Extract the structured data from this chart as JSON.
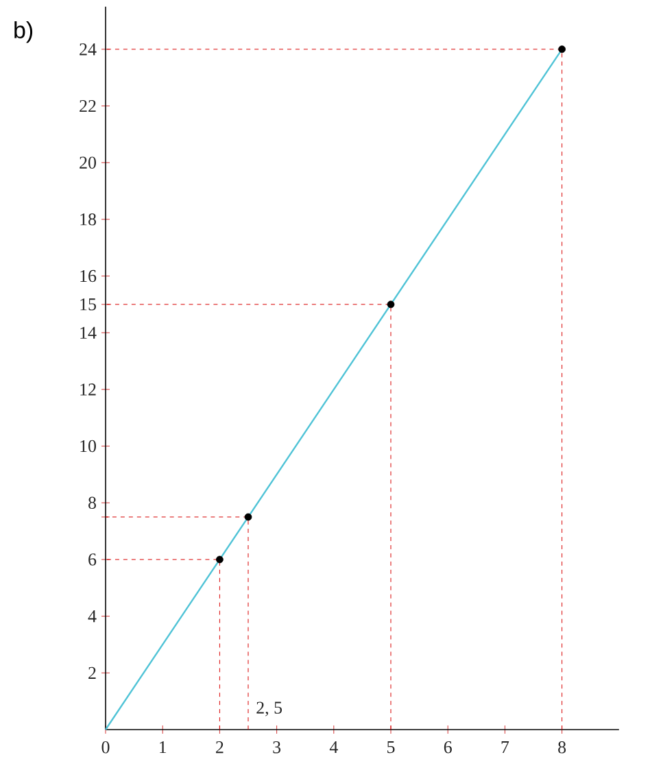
{
  "chart_data": {
    "type": "line",
    "title": "b)",
    "xlim": [
      0,
      9
    ],
    "ylim": [
      0,
      25.5
    ],
    "xticks": [
      0,
      1,
      2,
      3,
      4,
      5,
      6,
      7,
      8
    ],
    "yticks": [
      2,
      4,
      6,
      {
        "value": 7.5,
        "label": null
      },
      8,
      10,
      12,
      14,
      15,
      16,
      18,
      20,
      22,
      24
    ],
    "series": [
      {
        "color": "#d90000",
        "line_style": "dashed",
        "x": [
          2,
          2,
          0
        ],
        "values": [
          0,
          6,
          6
        ]
      },
      {
        "color": "#d90000",
        "line_style": "dashed",
        "x": [
          2.5,
          2.5,
          0
        ],
        "values": [
          0,
          7.5,
          7.5
        ]
      },
      {
        "color": "#d90000",
        "line_style": "dashed",
        "x": [
          5,
          5,
          0
        ],
        "values": [
          0,
          15,
          15
        ]
      },
      {
        "color": "#d90000",
        "line_style": "dashed",
        "x": [
          8,
          8,
          0
        ],
        "values": [
          0,
          24,
          24
        ]
      },
      {
        "color": "#4fc3d6",
        "x": [
          0,
          8
        ],
        "values": [
          0,
          24
        ]
      },
      {
        "type": "scatter",
        "color": "#000000",
        "x": [
          2,
          2.5,
          5,
          8
        ],
        "values": [
          6,
          7.5,
          15,
          24
        ]
      }
    ],
    "annotations": [
      "2, 5"
    ],
    "grid": false
  }
}
